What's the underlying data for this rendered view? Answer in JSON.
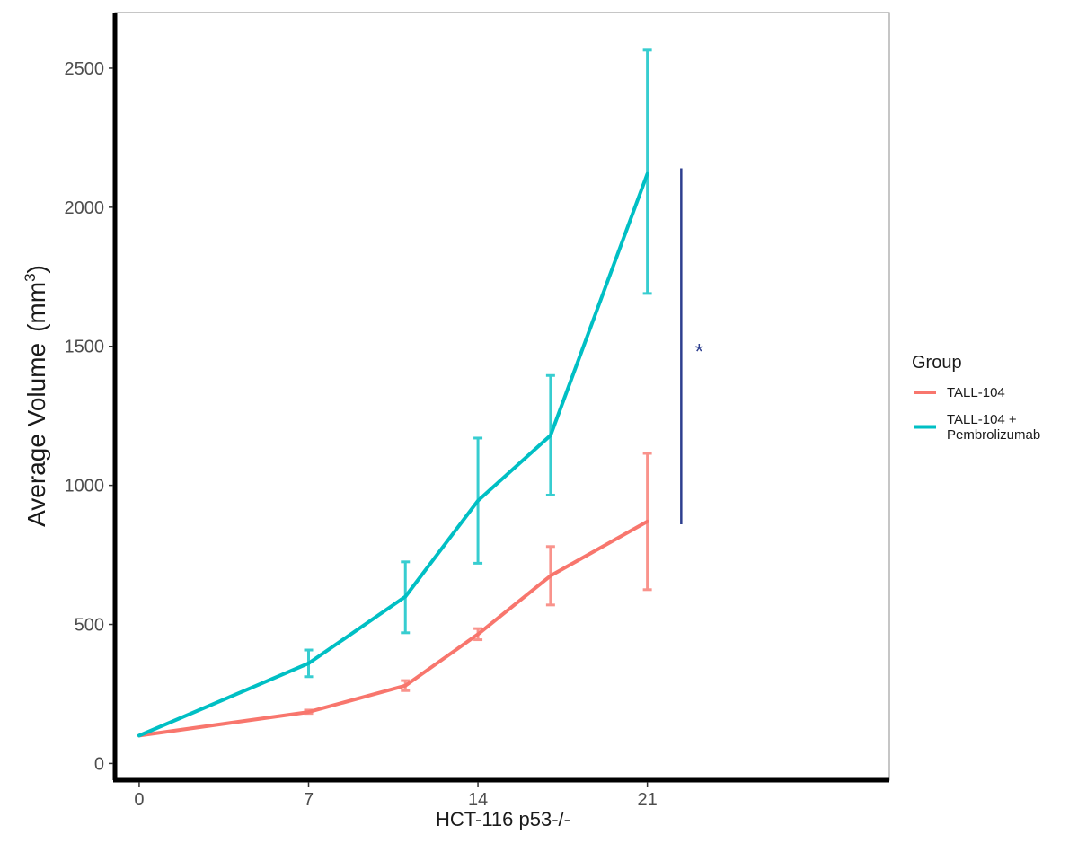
{
  "chart_data": {
    "type": "line",
    "xlabel": "HCT-116 p53-/-",
    "ylabel_main": "Average Volume",
    "ylabel_unit_prefix": "(mm",
    "ylabel_unit_sup": "3",
    "ylabel_unit_suffix": ")",
    "xlim": [
      -1,
      31
    ],
    "ylim": [
      -60,
      2700
    ],
    "x_ticks": [
      0,
      7,
      14,
      21
    ],
    "y_ticks": [
      0,
      500,
      1000,
      1500,
      2000,
      2500
    ],
    "grid": false,
    "legend": {
      "title": "Group",
      "placement": "right",
      "items": [
        {
          "label_lines": [
            "TALL-104"
          ],
          "color": "#F8766D"
        },
        {
          "label_lines": [
            "TALL-104 +",
            "Pembrolizumab"
          ],
          "color": "#00BFC4"
        }
      ]
    },
    "series": [
      {
        "name": "TALL-104",
        "color": "#F8766D",
        "x": [
          0,
          7,
          11,
          14,
          17,
          21
        ],
        "y": [
          100,
          185,
          280,
          465,
          675,
          870
        ],
        "err_low": [
          null,
          180,
          262,
          445,
          570,
          625
        ],
        "err_high": [
          null,
          192,
          298,
          485,
          780,
          1115
        ]
      },
      {
        "name": "TALL-104 + Pembrolizumab",
        "color": "#00BFC4",
        "x": [
          0,
          7,
          11,
          14,
          17,
          21
        ],
        "y": [
          100,
          360,
          600,
          945,
          1180,
          2120
        ],
        "err_low": [
          null,
          312,
          470,
          720,
          965,
          1690
        ],
        "err_high": [
          null,
          408,
          725,
          1170,
          1395,
          2565
        ]
      }
    ],
    "annotation": {
      "text": "*",
      "x": 22.4,
      "y_from": 860,
      "y_to": 2140,
      "color": "#2E3F8F"
    }
  }
}
